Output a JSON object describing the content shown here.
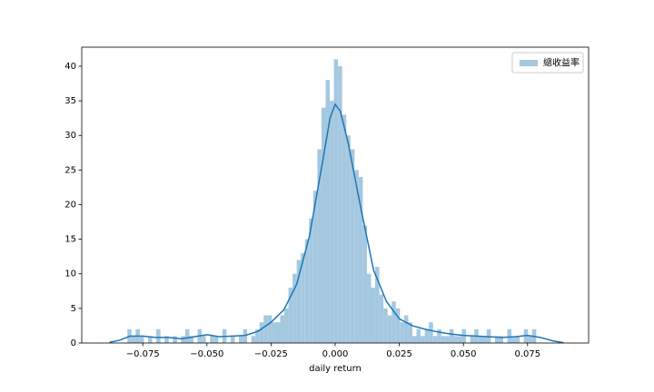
{
  "chart_data": {
    "type": "histogram",
    "name": "總收益率",
    "color": "#a5c8e1",
    "bins": [
      -0.081,
      -0.07939,
      -0.07778,
      -0.07617,
      -0.07456,
      -0.07295,
      -0.07134,
      -0.06973,
      -0.06812,
      -0.06651,
      -0.0649,
      -0.06329,
      -0.06168,
      -0.06007,
      -0.05846,
      -0.05685,
      -0.05524,
      -0.05363,
      -0.05202,
      -0.05041,
      -0.0488,
      -0.04719,
      -0.04558,
      -0.04397,
      -0.04236,
      -0.04075,
      -0.03914,
      -0.03753,
      -0.03592,
      -0.03431,
      -0.0327,
      -0.03109,
      -0.02948,
      -0.02787,
      -0.02626,
      -0.02465,
      -0.02304,
      -0.02143,
      -0.01982,
      -0.01821,
      -0.0166,
      -0.01499,
      -0.01338,
      -0.01177,
      -0.01016,
      -0.00855,
      -0.00694,
      -0.00533,
      -0.00372,
      -0.00211,
      -0.0005,
      0.00111,
      0.00272,
      0.00433,
      0.00594,
      0.00755,
      0.00916,
      0.01077,
      0.01238,
      0.01399,
      0.0156,
      0.01721,
      0.01882,
      0.02043,
      0.02204,
      0.02365,
      0.02526,
      0.02687,
      0.02848,
      0.03009,
      0.0317,
      0.03331,
      0.03492,
      0.03653,
      0.03814,
      0.03975,
      0.04136,
      0.04297,
      0.04458,
      0.04619,
      0.0478,
      0.04941,
      0.05102,
      0.05263,
      0.05424,
      0.05585,
      0.05746,
      0.05907,
      0.06068,
      0.06229,
      0.0639,
      0.06551,
      0.06712,
      0.06873,
      0.07034,
      0.07195,
      0.07356,
      0.07517,
      0.07678,
      0.07839,
      0.08
    ],
    "counts": [
      2,
      1,
      2,
      1,
      0,
      1,
      0,
      2,
      0,
      1,
      0,
      1,
      0,
      1,
      2,
      1,
      0,
      2,
      1,
      0,
      1,
      1,
      0,
      2,
      0,
      1,
      0,
      1,
      2,
      0,
      1,
      2,
      3,
      4,
      4,
      3,
      3,
      4,
      5,
      8,
      10,
      12,
      13,
      15,
      18,
      22,
      28,
      34,
      38,
      35,
      41,
      40,
      33,
      30,
      28,
      25,
      24,
      17,
      10,
      8,
      11,
      7,
      5,
      4,
      6,
      5,
      3,
      4,
      3,
      1,
      2,
      1,
      2,
      3,
      1,
      2,
      1,
      1,
      2,
      1,
      1,
      2,
      0,
      1,
      2,
      1,
      1,
      2,
      0,
      1,
      1,
      0,
      2,
      1,
      1,
      0,
      2,
      1,
      2,
      0
    ],
    "kde": {
      "color": "#1f77b4",
      "x": [
        -0.088,
        -0.084,
        -0.08,
        -0.075,
        -0.07,
        -0.065,
        -0.06,
        -0.055,
        -0.05,
        -0.045,
        -0.04,
        -0.035,
        -0.03,
        -0.025,
        -0.02,
        -0.015,
        -0.01,
        -0.005,
        -0.002,
        0,
        0.002,
        0.005,
        0.01,
        0.015,
        0.02,
        0.025,
        0.03,
        0.035,
        0.04,
        0.045,
        0.05,
        0.055,
        0.06,
        0.065,
        0.07,
        0.075,
        0.08,
        0.085,
        0.089
      ],
      "values": [
        0.1,
        0.4,
        1.0,
        1.0,
        0.8,
        0.8,
        0.6,
        0.9,
        1.2,
        0.9,
        1.0,
        1.1,
        1.7,
        3.0,
        4.8,
        8.5,
        15.5,
        26,
        32.5,
        34.5,
        33.5,
        29,
        19.5,
        10.5,
        6.0,
        3.5,
        2.5,
        2.0,
        1.6,
        1.3,
        1.1,
        1.0,
        0.9,
        0.8,
        0.9,
        1.1,
        0.8,
        0.3,
        0.05
      ]
    },
    "xlabel": "daily return",
    "xlim": [
      -0.0988,
      0.0988
    ],
    "xticks": [
      {
        "value": -0.075,
        "label": "−0.075"
      },
      {
        "value": -0.05,
        "label": "−0.050"
      },
      {
        "value": -0.025,
        "label": "−0.025"
      },
      {
        "value": 0,
        "label": "0.000"
      },
      0.025,
      {
        "value": 0.05,
        "label": "0.050"
      },
      0.075
    ],
    "ylim": [
      0,
      42.75
    ],
    "yticks": [
      0,
      5,
      10,
      15,
      20,
      25,
      30,
      35,
      40
    ],
    "legend": "upper right"
  }
}
